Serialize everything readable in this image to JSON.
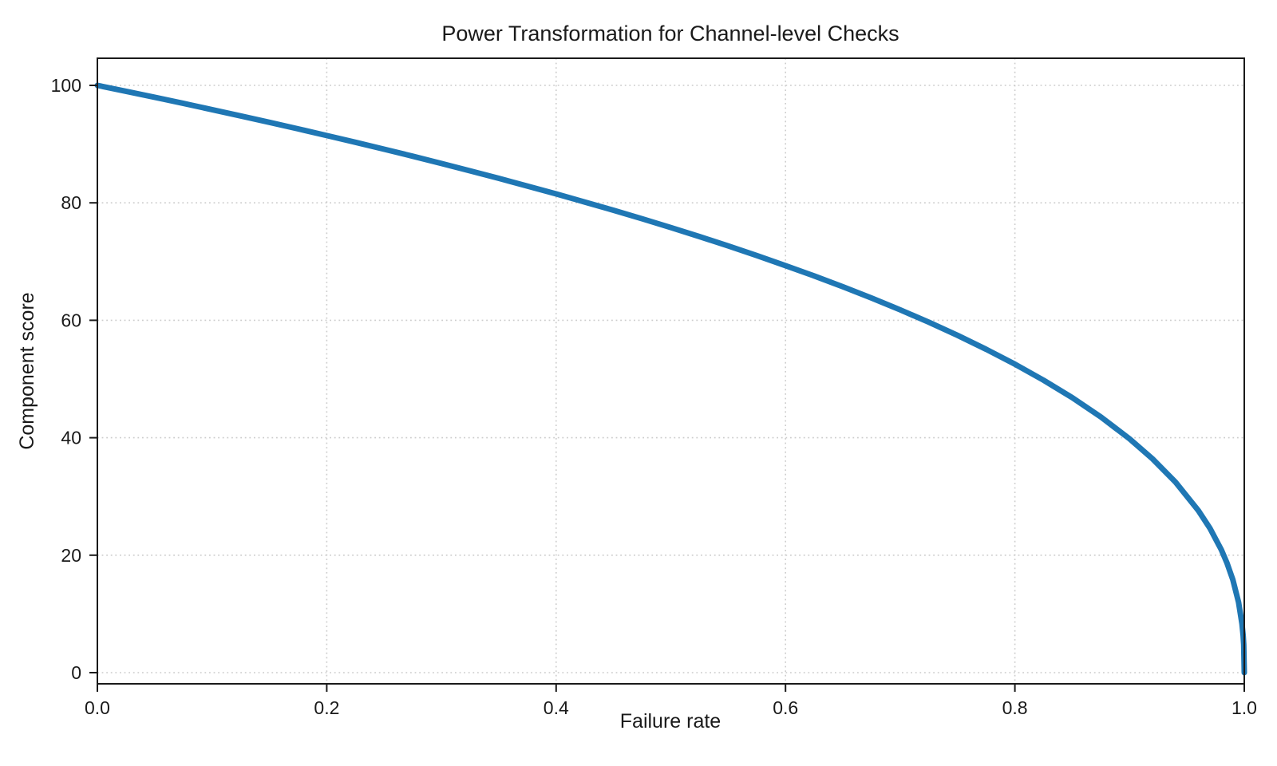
{
  "page": {
    "background": "#ffffff",
    "text_color": "#1a1a1a"
  },
  "chart_data": {
    "type": "line",
    "title": "Power Transformation for Channel-level Checks",
    "xlabel": "Failure rate",
    "ylabel": "Component score",
    "xlim": [
      0.0,
      1.0
    ],
    "ylim": [
      0,
      100
    ],
    "x_tick_values": [
      0.0,
      0.2,
      0.4,
      0.6,
      0.8,
      1.0
    ],
    "x_tick_labels": [
      "0.0",
      "0.2",
      "0.4",
      "0.6",
      "0.8",
      "1.0"
    ],
    "y_tick_values": [
      0,
      20,
      40,
      60,
      80,
      100
    ],
    "y_tick_labels": [
      "0",
      "20",
      "40",
      "60",
      "80",
      "100"
    ],
    "grid": "dotted",
    "grid_color": "#cccccc",
    "frame_color": "#1a1a1a",
    "legend": "none",
    "series": [
      {
        "name": "component-score-curve",
        "color": "#1f77b4",
        "line_width": 7,
        "x": [
          0,
          0.025,
          0.05,
          0.075,
          0.1,
          0.125,
          0.15,
          0.175,
          0.2,
          0.225,
          0.25,
          0.275,
          0.3,
          0.325,
          0.35,
          0.375,
          0.4,
          0.425,
          0.45,
          0.475,
          0.5,
          0.525,
          0.55,
          0.575,
          0.6,
          0.625,
          0.65,
          0.675,
          0.7,
          0.725,
          0.75,
          0.775,
          0.8,
          0.825,
          0.85,
          0.875,
          0.9,
          0.92,
          0.94,
          0.96,
          0.97,
          0.98,
          0.985,
          0.99,
          0.995,
          0.998,
          0.999,
          0.9995,
          1.0
        ],
        "y": [
          100,
          98.99,
          97.97,
          96.93,
          95.87,
          94.8,
          93.71,
          92.59,
          91.46,
          90.31,
          89.13,
          87.93,
          86.7,
          85.45,
          84.17,
          82.86,
          81.52,
          80.14,
          78.73,
          77.28,
          75.79,
          74.25,
          72.66,
          71.02,
          69.31,
          67.55,
          65.71,
          63.79,
          61.78,
          59.67,
          57.43,
          55.06,
          52.53,
          49.8,
          46.82,
          43.53,
          39.81,
          36.41,
          32.45,
          27.59,
          24.6,
          20.91,
          18.64,
          15.85,
          12.01,
          8.33,
          6.31,
          4.78,
          0
        ]
      }
    ]
  }
}
